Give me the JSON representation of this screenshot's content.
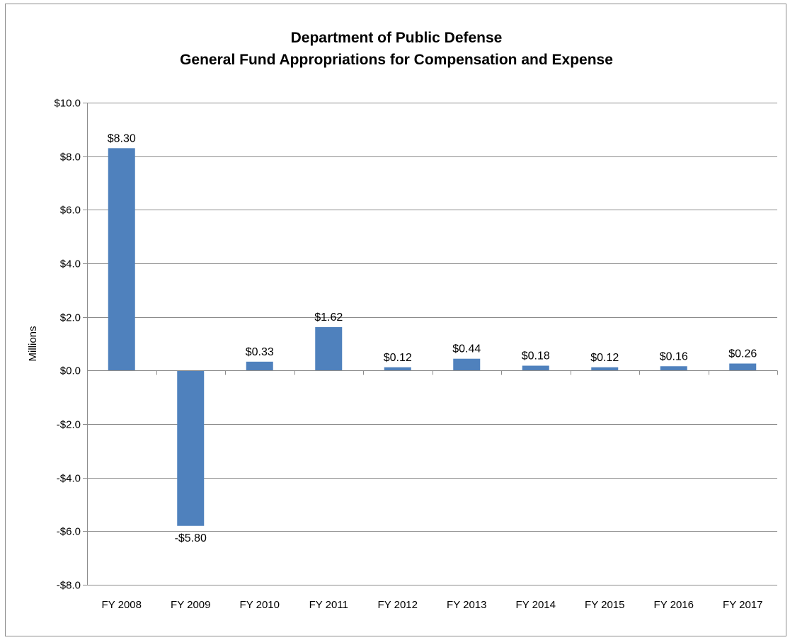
{
  "chart_data": {
    "type": "bar",
    "title": "Department of Public Defense",
    "subtitle": "General Fund Appropriations for Compensation and Expense",
    "xlabel": "",
    "ylabel": "Millions",
    "categories": [
      "FY 2008",
      "FY 2009",
      "FY 2010",
      "FY 2011",
      "FY 2012",
      "FY 2013",
      "FY 2014",
      "FY 2015",
      "FY 2016",
      "FY 2017"
    ],
    "values": [
      8.3,
      -5.8,
      0.33,
      1.62,
      0.12,
      0.44,
      0.18,
      0.12,
      0.16,
      0.26
    ],
    "data_labels": [
      "$8.30",
      "-$5.80",
      "$0.33",
      "$1.62",
      "$0.12",
      "$0.44",
      "$0.18",
      "$0.12",
      "$0.16",
      "$0.26"
    ],
    "ylim": [
      -8,
      10
    ],
    "yticks": [
      -8,
      -6,
      -4,
      -2,
      0,
      2,
      4,
      6,
      8,
      10
    ],
    "ytick_labels": [
      "-$8.0",
      "-$6.0",
      "-$4.0",
      "-$2.0",
      "$0.0",
      "$2.0",
      "$4.0",
      "$6.0",
      "$8.0",
      "$10.0"
    ],
    "grid": true,
    "legend": "none",
    "colors": {
      "bar": "#4f81bd",
      "grid": "#8c8c8c",
      "axis": "#8c8c8c"
    }
  }
}
